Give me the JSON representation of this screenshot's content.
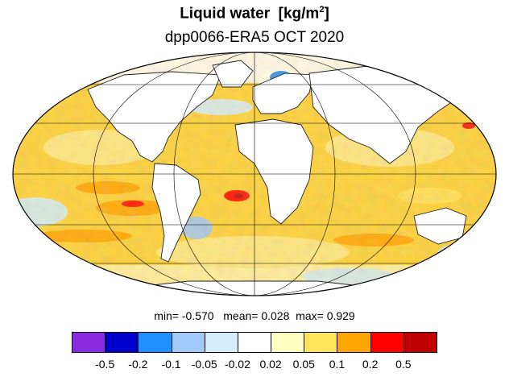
{
  "title": {
    "main": "Liquid water",
    "unit_open": "[kg/m",
    "unit_sup": "2",
    "unit_close": "]"
  },
  "subtitle": "dpp0066-ERA5 OCT 2020",
  "stats": {
    "min_label": "min=",
    "min_value": "-0.570",
    "mean_label": "mean=",
    "mean_value": "0.028",
    "max_label": "max=",
    "max_value": "0.929"
  },
  "colorbar": {
    "colors": [
      "#8a2be2",
      "#0000cd",
      "#1e90ff",
      "#a0c8f8",
      "#d4eefc",
      "#ffffff",
      "#ffffc0",
      "#ffe35a",
      "#ffa500",
      "#ff0000",
      "#c00000"
    ],
    "labels": [
      "-0.5",
      "-0.2",
      "-0.1",
      "-0.05",
      "-0.02",
      "0.02",
      "0.05",
      "0.1",
      "0.2",
      "0.5"
    ]
  },
  "map": {
    "projection": "Mollweide",
    "graticule": true,
    "ocean_fill": "#ffd23c",
    "land_fill": "#ffffff"
  }
}
